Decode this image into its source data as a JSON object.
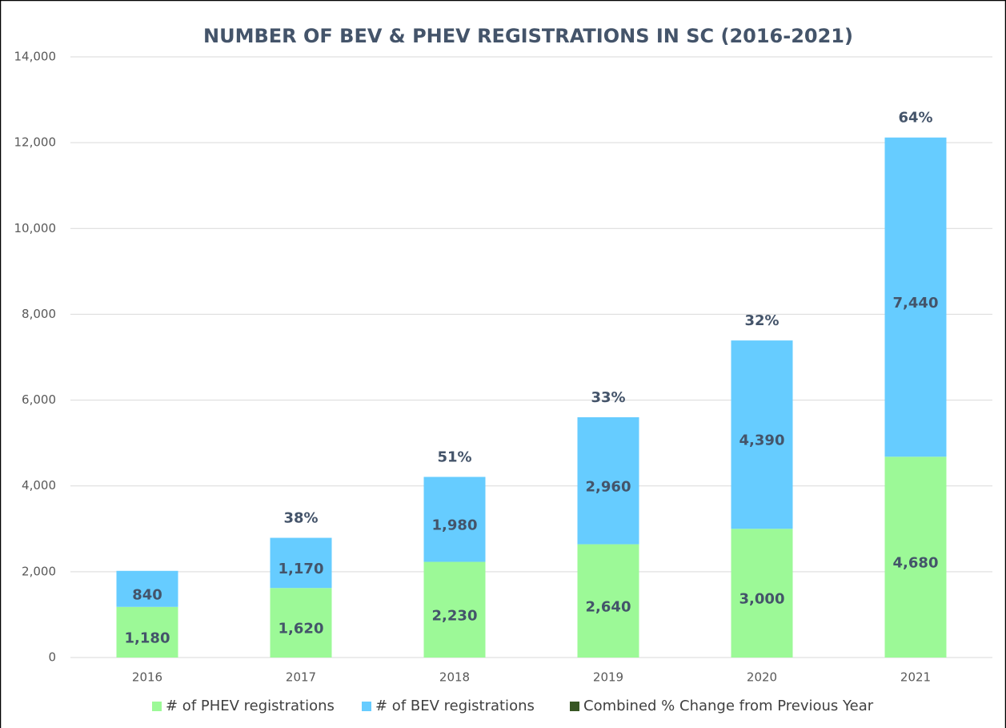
{
  "chart_data": {
    "type": "stacked_bar",
    "title": "NUMBER OF BEV & PHEV REGISTRATIONS IN SC (2016-2021)",
    "categories": [
      "2016",
      "2017",
      "2018",
      "2019",
      "2020",
      "2021"
    ],
    "series": [
      {
        "name": "# of PHEV registrations",
        "color": "#9cf997",
        "values": [
          1180,
          1620,
          2230,
          2640,
          3000,
          4680
        ],
        "value_labels": [
          "1,180",
          "1,620",
          "2,230",
          "2,640",
          "3,000",
          "4,680"
        ]
      },
      {
        "name": "# of BEV registrations",
        "color": "#66ccff",
        "values": [
          840,
          1170,
          1980,
          2960,
          4390,
          7440
        ],
        "value_labels": [
          "840",
          "1,170",
          "1,980",
          "2,960",
          "4,390",
          "7,440"
        ]
      },
      {
        "name": "Combined % Change from Previous Year",
        "color": "#375623",
        "values": [
          null,
          38,
          51,
          33,
          32,
          64
        ],
        "value_labels": [
          null,
          "38%",
          "51%",
          "33%",
          "32%",
          "64%"
        ]
      }
    ],
    "ylim": [
      0,
      14000
    ],
    "yticks": [
      0,
      {
        "value": 2000,
        "label": "2,000"
      },
      {
        "value": 4000,
        "label": "4,000"
      },
      {
        "value": 6000,
        "label": "6,000"
      },
      {
        "value": 8000,
        "label": "8,000"
      },
      {
        "value": 10000,
        "label": "10,000"
      },
      {
        "value": 12000,
        "label": "12,000"
      },
      {
        "value": 14000,
        "label": "14,000"
      }
    ],
    "grid": true,
    "legend": "bottom"
  }
}
